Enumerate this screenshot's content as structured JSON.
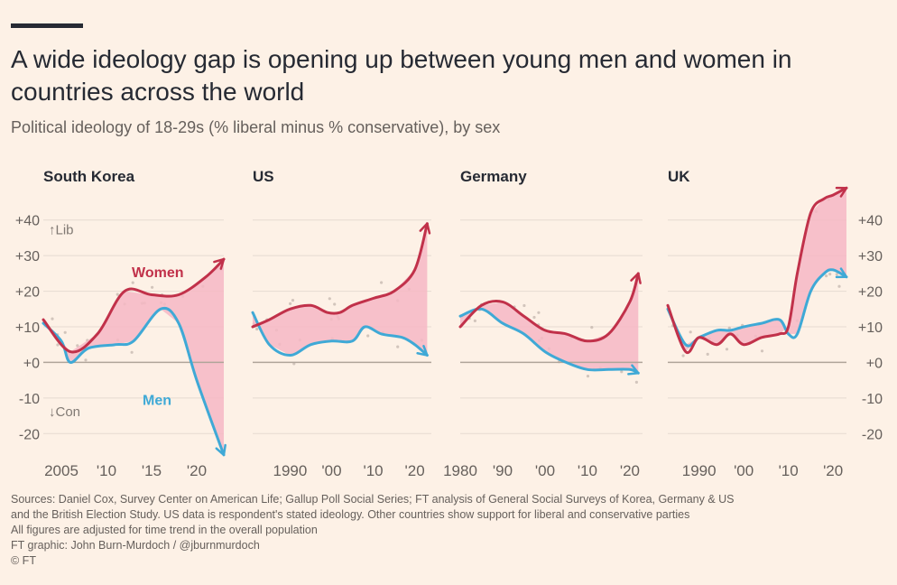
{
  "title": "A wide ideology gap is opening up between young men and women in countries across the world",
  "subtitle": "Political ideology of 18-29s (% liberal minus % conservative), by sex",
  "colors": {
    "women": "#c1314a",
    "men": "#3fa9d6",
    "fill": "#f6b7c4",
    "zero": "#b0a59a",
    "grid": "#e6dbd1",
    "dots": "#b5a9a0"
  },
  "footer": {
    "sources_line1": "Sources: Daniel Cox, Survey Center on American Life; Gallup Poll Social Series; FT analysis of General Social Surveys of Korea, Germany & US",
    "sources_line2": "and the British Election Study. US data is respondent's stated ideology. Other countries show support for liberal and conservative parties",
    "note": "All figures are adjusted for time trend in the overall population",
    "credit": "FT graphic: John Burn-Murdoch / @jburnmurdoch",
    "copyright": "© FT"
  },
  "chart_data": [
    {
      "type": "line",
      "title": "South Korea",
      "xlim": [
        2003,
        2023
      ],
      "ylim": [
        -25,
        45
      ],
      "yticks": [
        -20,
        -10,
        0,
        10,
        20,
        30,
        40
      ],
      "ytick_labels": [
        "-20",
        "-10",
        "+0",
        "+10",
        "+20",
        "+30",
        "+40"
      ],
      "xticks": [
        2005,
        2010,
        2015,
        2020
      ],
      "xtick_labels": [
        "2005",
        "'10",
        "'15",
        "'20"
      ],
      "annotation_up": "↑Lib",
      "annotation_down": "↓Con",
      "series": [
        {
          "name": "Women",
          "x": [
            2003,
            2006,
            2009,
            2012,
            2015,
            2018,
            2021,
            2023
          ],
          "y": [
            12,
            3,
            8,
            20,
            19,
            19,
            24,
            29
          ]
        },
        {
          "name": "Men",
          "x": [
            2003,
            2005,
            2006,
            2008,
            2011,
            2013,
            2016,
            2018,
            2020,
            2023
          ],
          "y": [
            11,
            6,
            0,
            4,
            5,
            6,
            15,
            11,
            -5,
            -26
          ]
        }
      ]
    },
    {
      "type": "line",
      "title": "US",
      "xlim": [
        1981,
        2024
      ],
      "ylim": [
        -25,
        45
      ],
      "yticks": [
        -20,
        -10,
        0,
        10,
        20,
        30,
        40
      ],
      "xticks": [
        1990,
        2000,
        2010,
        2020
      ],
      "xtick_labels": [
        "1990",
        "'00",
        "'10",
        "'20"
      ],
      "series": [
        {
          "name": "Women",
          "x": [
            1981,
            1985,
            1990,
            1995,
            1999,
            2002,
            2005,
            2010,
            2015,
            2020,
            2023
          ],
          "y": [
            10,
            12,
            15,
            16,
            14,
            14,
            16,
            18,
            20,
            26,
            39
          ]
        },
        {
          "name": "Men",
          "x": [
            1981,
            1985,
            1990,
            1995,
            2000,
            2005,
            2008,
            2012,
            2017,
            2020,
            2023
          ],
          "y": [
            14,
            5,
            2,
            5,
            6,
            6,
            10,
            8,
            7,
            5,
            2
          ]
        }
      ]
    },
    {
      "type": "line",
      "title": "Germany",
      "xlim": [
        1980,
        2023
      ],
      "ylim": [
        -25,
        45
      ],
      "yticks": [
        -20,
        -10,
        0,
        10,
        20,
        30,
        40
      ],
      "xticks": [
        1980,
        1990,
        2000,
        2010,
        2020
      ],
      "xtick_labels": [
        "1980",
        "'90",
        "'00",
        "'10",
        "'20"
      ],
      "series": [
        {
          "name": "Women",
          "x": [
            1980,
            1985,
            1990,
            1995,
            2000,
            2005,
            2010,
            2015,
            2020,
            2022
          ],
          "y": [
            10,
            16,
            17,
            13,
            9,
            8,
            6,
            8,
            17,
            25
          ]
        },
        {
          "name": "Men",
          "x": [
            1980,
            1985,
            1990,
            1995,
            2000,
            2005,
            2010,
            2015,
            2020,
            2022
          ],
          "y": [
            13,
            15,
            11,
            8,
            3,
            0,
            -2,
            -2,
            -2,
            -3
          ]
        }
      ]
    },
    {
      "type": "line",
      "title": "UK",
      "xlim": [
        1983,
        2023
      ],
      "ylim": [
        -25,
        45
      ],
      "yticks": [
        -20,
        -10,
        0,
        10,
        20,
        30,
        40
      ],
      "ytick_labels": [
        "-20",
        "-10",
        "+0",
        "+10",
        "+20",
        "+30",
        "+40"
      ],
      "xticks": [
        1990,
        2000,
        2010,
        2020
      ],
      "xtick_labels": [
        "1990",
        "'00",
        "'10",
        "'20"
      ],
      "series": [
        {
          "name": "Women",
          "x": [
            1983,
            1987,
            1990,
            1994,
            1997,
            2000,
            2004,
            2008,
            2010,
            2012,
            2015,
            2018,
            2020,
            2023
          ],
          "y": [
            16,
            3,
            7,
            5,
            8,
            5,
            7,
            8,
            10,
            25,
            42,
            46,
            47,
            49
          ]
        },
        {
          "name": "Men",
          "x": [
            1983,
            1987,
            1990,
            1994,
            1997,
            2000,
            2004,
            2008,
            2010,
            2012,
            2015,
            2018,
            2020,
            2023
          ],
          "y": [
            15,
            5,
            7,
            9,
            9,
            10,
            11,
            12,
            8,
            8,
            20,
            25,
            26,
            24
          ]
        }
      ]
    }
  ]
}
